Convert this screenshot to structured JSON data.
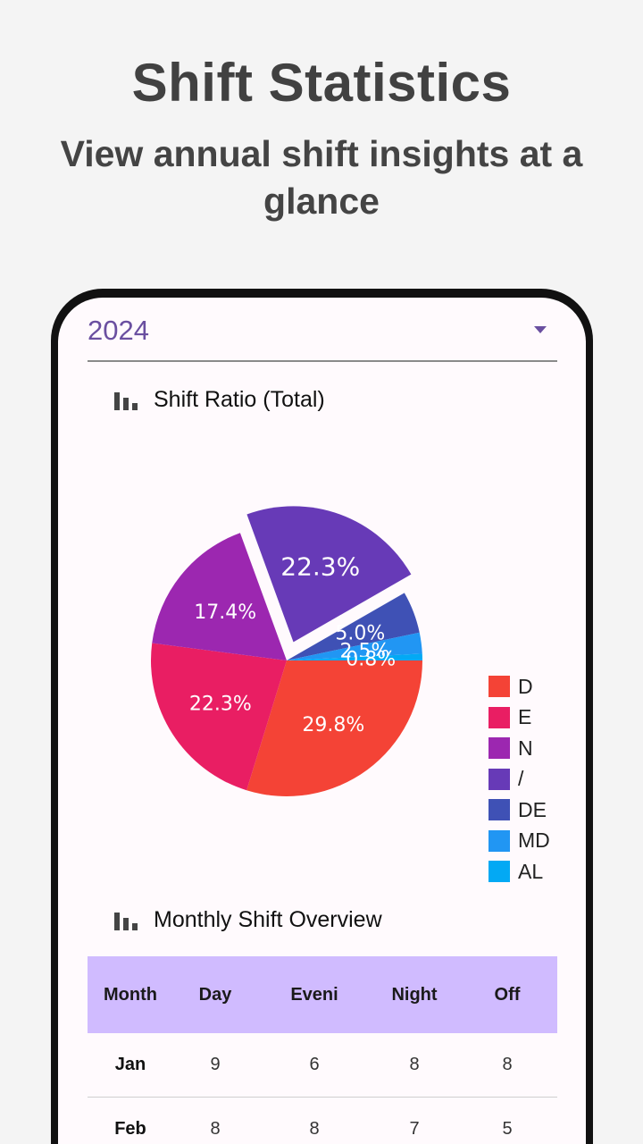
{
  "promo": {
    "title": "Shift Statistics",
    "subtitle": "View annual shift insights at a glance"
  },
  "year_select": {
    "value": "2024"
  },
  "ratio_section": {
    "title": "Shift Ratio (Total)",
    "icon": "bar-chart-icon"
  },
  "monthly_section": {
    "title": "Monthly Shift Overview",
    "icon": "bar-chart-icon"
  },
  "chart_data": {
    "type": "pie",
    "title": "Shift Ratio (Total)",
    "legend_position": "right",
    "slices": [
      {
        "label": "D",
        "value": 29.8,
        "display": "29.8%",
        "color": "#f44336"
      },
      {
        "label": "E",
        "value": 22.3,
        "display": "22.3%",
        "color": "#e91e63"
      },
      {
        "label": "N",
        "value": 17.4,
        "display": "17.4%",
        "color": "#9c27b0"
      },
      {
        "label": "/",
        "value": 22.3,
        "display": "22.3%",
        "color": "#673ab7"
      },
      {
        "label": "DE",
        "value": 5.0,
        "display": "5.0%",
        "color": "#3f51b5"
      },
      {
        "label": "MD",
        "value": 2.5,
        "display": "2.5%",
        "color": "#2196f3"
      },
      {
        "label": "AL",
        "value": 0.8,
        "display": "0.8%",
        "color": "#03a9f4"
      }
    ]
  },
  "table": {
    "headers": [
      "Month",
      "Day",
      "Eveni",
      "Night",
      "Off"
    ],
    "rows": [
      [
        "Jan",
        "9",
        "6",
        "8",
        "8"
      ],
      [
        "Feb",
        "8",
        "8",
        "7",
        "5"
      ]
    ]
  }
}
